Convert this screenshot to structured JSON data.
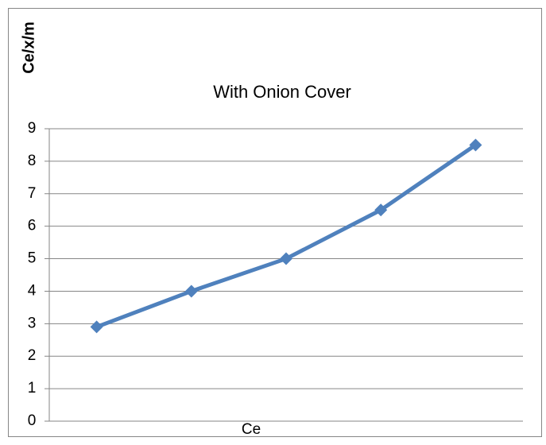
{
  "chart_data": {
    "type": "line",
    "title": "With  Onion Cover",
    "y_label": "Ce/x/m",
    "x_label": "Ce",
    "categories": [
      null,
      null,
      null,
      null,
      null
    ],
    "series": [
      {
        "name": null,
        "color": "#4f81bd",
        "values": [
          2.9,
          4,
          5,
          6.5,
          8.5
        ]
      }
    ],
    "ylim": [
      0,
      9
    ],
    "yticks": [
      0,
      1,
      2,
      3,
      4,
      5,
      6,
      7,
      8,
      9
    ],
    "grid": true
  }
}
